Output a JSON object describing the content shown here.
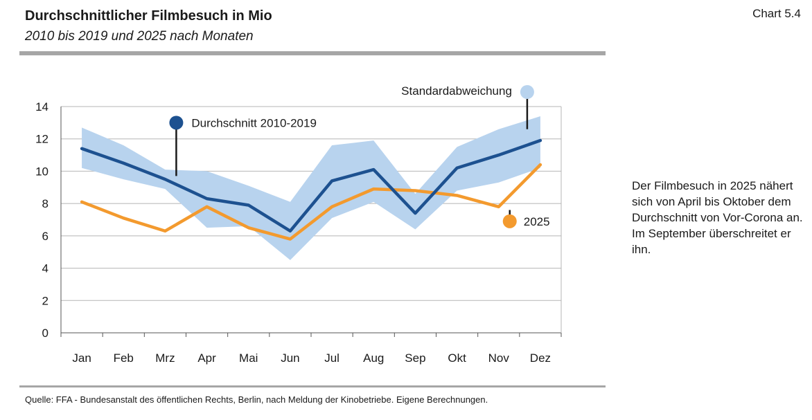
{
  "chart_no": "Chart 5.4",
  "source": "Quelle: FFA - Bundesanstalt des öffentlichen Rechts, Berlin, nach Meldung der Kinobetriebe. Eigene Berechnungen.",
  "note": "Der Filmbesuch in 2025 nähert sich von April bis Oktober dem Durchschnitt von Vor-Corona an. Im September überschreitet er ihn.",
  "chart_data": {
    "type": "line",
    "title": "Durchschnittlicher Filmbesuch in Mio",
    "subtitle": "2010 bis 2019 und 2025 nach Monaten",
    "categories": [
      "Jan",
      "Feb",
      "Mrz",
      "Apr",
      "Mai",
      "Jun",
      "Jul",
      "Aug",
      "Sep",
      "Okt",
      "Nov",
      "Dez"
    ],
    "ylim": [
      0,
      14
    ],
    "yticks": [
      "0",
      "2",
      "4",
      "6",
      "8",
      "10",
      "12",
      "14"
    ],
    "grid": true,
    "band": {
      "name": "Standardabweichung",
      "upper": [
        12.7,
        11.6,
        10.1,
        10.0,
        9.1,
        8.1,
        11.6,
        11.9,
        8.6,
        11.5,
        12.6,
        13.4
      ],
      "lower": [
        10.2,
        9.5,
        8.9,
        6.5,
        6.6,
        4.5,
        7.1,
        8.1,
        6.4,
        8.8,
        9.3,
        10.2
      ],
      "color": "#b8d3ee"
    },
    "series": [
      {
        "name": "Durchschnitt 2010-2019",
        "color": "#1d5190",
        "values": [
          11.4,
          10.5,
          9.5,
          8.3,
          7.9,
          6.3,
          9.4,
          10.1,
          7.4,
          10.2,
          11.0,
          11.9
        ]
      },
      {
        "name": "2025",
        "color": "#f39a2e",
        "values": [
          8.1,
          7.1,
          6.3,
          7.8,
          6.5,
          5.8,
          7.8,
          8.9,
          8.8,
          8.5,
          7.8,
          10.4
        ]
      }
    ],
    "annotations": {
      "avg_label": "Durchschnitt 2010-2019",
      "band_label": "Standardabweichung",
      "y2025_label": "2025"
    }
  }
}
